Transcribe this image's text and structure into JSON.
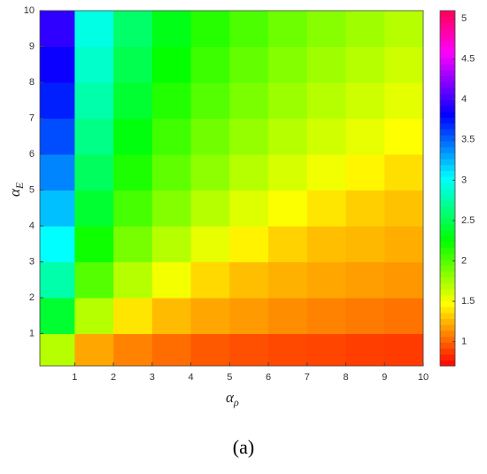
{
  "chart_data": {
    "type": "contourf",
    "xlabel": {
      "symbol": "α",
      "subscript": "ρ"
    },
    "ylabel": {
      "symbol": "α",
      "subscript": "E"
    },
    "caption": "(a)",
    "x": [
      0.5,
      1.5,
      2.5,
      3.5,
      4.5,
      5.5,
      6.5,
      7.5,
      8.5,
      9.5
    ],
    "y": [
      0.5,
      1.5,
      2.5,
      3.5,
      4.5,
      5.5,
      6.5,
      7.5,
      8.5,
      9.5
    ],
    "z": [
      [
        1.7,
        1.21,
        1.1,
        1.03,
        0.97,
        0.94,
        0.92,
        0.91,
        0.89,
        0.88
      ],
      [
        2.4,
        1.7,
        1.4,
        1.27,
        1.21,
        1.17,
        1.13,
        1.1,
        1.07,
        1.05
      ],
      [
        2.77,
        2.0,
        1.7,
        1.51,
        1.36,
        1.28,
        1.24,
        1.21,
        1.18,
        1.16
      ],
      [
        3.03,
        2.21,
        1.89,
        1.7,
        1.55,
        1.44,
        1.34,
        1.28,
        1.26,
        1.23
      ],
      [
        3.22,
        2.4,
        2.04,
        1.85,
        1.7,
        1.58,
        1.49,
        1.4,
        1.33,
        1.29
      ],
      [
        3.4,
        2.54,
        2.17,
        1.96,
        1.82,
        1.7,
        1.6,
        1.52,
        1.45,
        1.38
      ],
      [
        3.57,
        2.66,
        2.29,
        2.06,
        1.91,
        1.8,
        1.7,
        1.62,
        1.55,
        1.48
      ],
      [
        3.71,
        2.77,
        2.4,
        2.15,
        2.0,
        1.88,
        1.78,
        1.7,
        1.63,
        1.56
      ],
      [
        3.84,
        2.87,
        2.49,
        2.24,
        2.07,
        1.95,
        1.85,
        1.77,
        1.7,
        1.63
      ],
      [
        3.95,
        2.95,
        2.57,
        2.32,
        2.14,
        2.02,
        1.92,
        1.84,
        1.77,
        1.7
      ]
    ],
    "xlim": [
      0.1,
      10
    ],
    "ylim": [
      0.1,
      10
    ],
    "xticks": [
      1,
      2,
      3,
      4,
      5,
      6,
      7,
      8,
      9,
      10
    ],
    "yticks": [
      1,
      2,
      3,
      4,
      5,
      6,
      7,
      8,
      9,
      10
    ],
    "colormap": "hsv",
    "clim": [
      0.7,
      5.1
    ],
    "cticks": [
      1,
      1.5,
      2,
      2.5,
      3,
      3.5,
      4,
      4.5,
      5
    ]
  }
}
